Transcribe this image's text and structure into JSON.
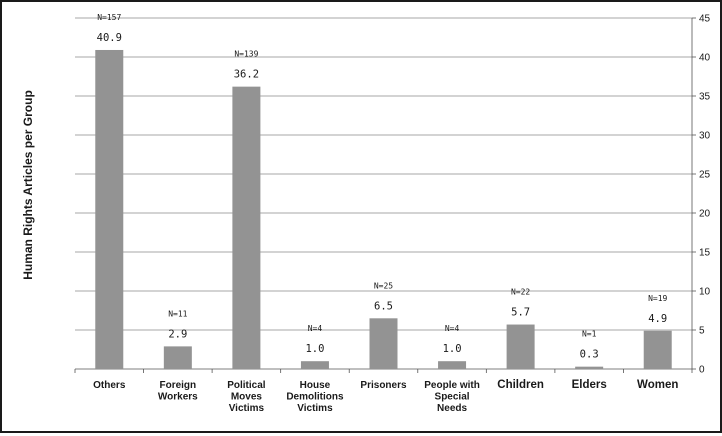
{
  "chart_data": {
    "type": "bar",
    "ylabel": "Human Rights Articles per Group",
    "ylim": [
      0,
      45
    ],
    "y_ticks": [
      0,
      5,
      10,
      15,
      20,
      25,
      30,
      35,
      40,
      45
    ],
    "grid": true,
    "y_axis_side": "right",
    "bar_color": "#939393",
    "categories": [
      [
        "Others"
      ],
      [
        "Foreign",
        "Workers"
      ],
      [
        "Political",
        "Moves",
        "Victims"
      ],
      [
        "House",
        "Demolitions",
        "Victims"
      ],
      [
        "Prisoners"
      ],
      [
        "People with",
        "Special",
        "Needs"
      ],
      [
        "Children"
      ],
      [
        "Elders"
      ],
      [
        "Women"
      ]
    ],
    "values": [
      40.9,
      2.9,
      36.2,
      1.0,
      6.5,
      1.0,
      5.7,
      0.3,
      4.9
    ],
    "value_labels": [
      "40.9",
      "2.9",
      "36.2",
      "1.0",
      "6.5",
      "1.0",
      "5.7",
      "0.3",
      "4.9"
    ],
    "n_labels": [
      "N=157",
      "N=11",
      "N=139",
      "N=4",
      "N=25",
      "N=4",
      "N=22",
      "N=1",
      "N=19"
    ]
  }
}
